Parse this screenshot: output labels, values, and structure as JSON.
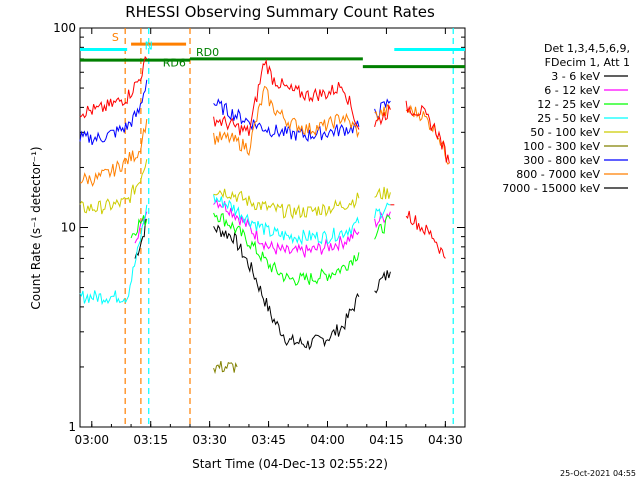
{
  "chart_data": {
    "type": "line",
    "title": "RHESSI Observing Summary Count Rates",
    "xlabel": "Start Time (04-Dec-13 02:55:22)",
    "ylabel": "Count Rate (s⁻¹ detector⁻¹)",
    "yscale": "log",
    "ylim": [
      1,
      100
    ],
    "xlim_min": [
      -3,
      95
    ],
    "x_ticks": [
      {
        "label": "03:00",
        "min": 0
      },
      {
        "label": "03:15",
        "min": 15
      },
      {
        "label": "03:30",
        "min": 30
      },
      {
        "label": "03:45",
        "min": 45
      },
      {
        "label": "04:00",
        "min": 60
      },
      {
        "label": "04:15",
        "min": 75
      },
      {
        "label": "04:30",
        "min": 90
      }
    ],
    "y_ticks": [
      {
        "label": "1",
        "value": 1
      },
      {
        "label": "10",
        "value": 10
      },
      {
        "label": "100",
        "value": 100
      }
    ],
    "legend": {
      "position": "top-right",
      "header": [
        "Det 1,3,4,5,6,9,",
        "FDecim 1, Att 1"
      ]
    },
    "gaps": [
      [
        14.5,
        31
      ],
      [
        47,
        47
      ],
      [
        68,
        70
      ],
      [
        79,
        80
      ]
    ],
    "series": [
      {
        "name": "3 - 6 keV",
        "color": "#000000",
        "points": [
          [
            11,
            7
          ],
          [
            13,
            9
          ],
          [
            14,
            11
          ],
          [
            31,
            10
          ],
          [
            36,
            9
          ],
          [
            41,
            6
          ],
          [
            46,
            3.5
          ],
          [
            50,
            2.7
          ],
          [
            55,
            2.6
          ],
          [
            60,
            2.8
          ],
          [
            64,
            3.2
          ],
          [
            68,
            4.5
          ],
          [
            72,
            5
          ],
          [
            76,
            6
          ]
        ]
      },
      {
        "name": "6 - 12 keV",
        "color": "#ff00ff",
        "points": [
          [
            11,
            9
          ],
          [
            13,
            10.5
          ],
          [
            14,
            12
          ],
          [
            31,
            14
          ],
          [
            35,
            12.5
          ],
          [
            40,
            10
          ],
          [
            45,
            8
          ],
          [
            50,
            7.5
          ],
          [
            55,
            7.6
          ],
          [
            60,
            8
          ],
          [
            64,
            8.5
          ],
          [
            68,
            9.5
          ],
          [
            72,
            10.5
          ],
          [
            76,
            12
          ]
        ]
      },
      {
        "name": "12 - 25 keV",
        "color": "#00ff00",
        "points": [
          [
            10,
            9
          ],
          [
            12,
            10.5
          ],
          [
            14,
            11
          ],
          [
            31,
            12
          ],
          [
            35,
            10.5
          ],
          [
            40,
            8.5
          ],
          [
            45,
            6.5
          ],
          [
            50,
            5.5
          ],
          [
            55,
            5.5
          ],
          [
            60,
            5.8
          ],
          [
            64,
            6.3
          ],
          [
            68,
            7.5
          ],
          [
            72,
            9
          ],
          [
            76,
            11
          ]
        ]
      },
      {
        "name": "25 - 50 keV",
        "color": "#00ffff",
        "points": [
          [
            -3,
            4.5
          ],
          [
            3,
            4.5
          ],
          [
            9,
            4.5
          ],
          [
            12,
            8
          ],
          [
            14,
            13
          ],
          [
            31,
            14
          ],
          [
            35,
            13
          ],
          [
            40,
            11
          ],
          [
            45,
            9.5
          ],
          [
            50,
            9
          ],
          [
            55,
            9
          ],
          [
            60,
            9
          ],
          [
            64,
            9.5
          ],
          [
            68,
            10.5
          ],
          [
            72,
            11.5
          ],
          [
            76,
            13
          ]
        ]
      },
      {
        "name": "50 - 100 keV",
        "color": "#cccc00",
        "points": [
          [
            -3,
            12.5
          ],
          [
            1,
            12.5
          ],
          [
            6,
            13
          ],
          [
            9,
            13.5
          ],
          [
            12,
            17
          ],
          [
            14,
            22
          ],
          [
            31,
            15.5
          ],
          [
            35,
            15
          ],
          [
            40,
            13.5
          ],
          [
            45,
            12.5
          ],
          [
            50,
            12
          ],
          [
            55,
            12
          ],
          [
            60,
            12.5
          ],
          [
            64,
            13
          ],
          [
            68,
            14
          ],
          [
            72,
            14.5
          ],
          [
            76,
            15
          ]
        ]
      },
      {
        "name": "100 - 300 keV",
        "color": "#808000",
        "points": [
          [
            31,
            2
          ],
          [
            34,
            2
          ],
          [
            37,
            2
          ]
        ]
      },
      {
        "name": "300 - 800 keV",
        "color": "#0000ff",
        "points": [
          [
            -3,
            28
          ],
          [
            2,
            28
          ],
          [
            6,
            30
          ],
          [
            9,
            32
          ],
          [
            12,
            38
          ],
          [
            14,
            55
          ],
          [
            31,
            42
          ],
          [
            35,
            38
          ],
          [
            40,
            34
          ],
          [
            45,
            31
          ],
          [
            50,
            29.5
          ],
          [
            55,
            29
          ],
          [
            60,
            30
          ],
          [
            64,
            31
          ],
          [
            68,
            32
          ],
          [
            72,
            37
          ],
          [
            76,
            43
          ]
        ]
      },
      {
        "name": "800 - 7000 keV",
        "color": "#ff7f00",
        "points": [
          [
            -3,
            17.5
          ],
          [
            1,
            17.5
          ],
          [
            5,
            19
          ],
          [
            8,
            21
          ],
          [
            12,
            24
          ],
          [
            14,
            35
          ],
          [
            31,
            28
          ],
          [
            35,
            28
          ],
          [
            40,
            25
          ],
          [
            44,
            49
          ],
          [
            46,
            40
          ],
          [
            50,
            34
          ],
          [
            55,
            31
          ],
          [
            60,
            32.5
          ],
          [
            64,
            36
          ],
          [
            68,
            30
          ],
          [
            72,
            36
          ],
          [
            76,
            39
          ],
          [
            80,
            39
          ],
          [
            84,
            37
          ],
          [
            88,
            30
          ],
          [
            91,
            21
          ]
        ]
      },
      {
        "name": "7000 - 15000 keV",
        "color": "#000000",
        "points": []
      },
      {
        "name": "",
        "color": "#ff0000",
        "points": [
          [
            -3,
            38
          ],
          [
            2,
            39
          ],
          [
            6,
            42
          ],
          [
            9,
            45
          ],
          [
            12,
            55
          ],
          [
            14,
            70
          ],
          [
            31,
            35
          ],
          [
            35,
            33
          ],
          [
            40,
            30
          ],
          [
            44,
            69
          ],
          [
            46,
            56
          ],
          [
            50,
            49
          ],
          [
            55,
            46
          ],
          [
            60,
            47
          ],
          [
            64,
            52
          ],
          [
            68,
            31
          ],
          [
            72,
            33
          ],
          [
            76,
            39
          ],
          [
            80,
            40
          ],
          [
            84,
            38
          ],
          [
            88,
            30
          ],
          [
            91,
            21
          ],
          [
            76,
            13
          ],
          [
            80,
            12
          ],
          [
            84,
            10
          ],
          [
            87,
            9
          ],
          [
            90,
            7
          ]
        ]
      }
    ],
    "level_bars": [
      {
        "label": "",
        "color": "#00ffff",
        "x0": -3,
        "x1": 9,
        "y": 78
      },
      {
        "label": "",
        "color": "#00ffff",
        "x0": 77,
        "x1": 95,
        "y": 78
      },
      {
        "label": "",
        "color": "#ff7f00",
        "x0": 10,
        "x1": 24,
        "y": 83
      },
      {
        "label": "",
        "color": "#008000",
        "x0": -3,
        "x1": 25,
        "y": 69
      },
      {
        "label": "RD0",
        "color": "#008000",
        "x0": 25,
        "x1": 69,
        "y": 70
      },
      {
        "label": "",
        "color": "#008000",
        "x0": 69,
        "x1": 95,
        "y": 64
      }
    ],
    "text_marks": [
      {
        "label": "S",
        "color": "#ff7f00",
        "x": 6,
        "y": 86
      },
      {
        "label": "N",
        "color": "#00ffff",
        "x": 14.5,
        "y": 78
      },
      {
        "label": "RD6",
        "color": "#008000",
        "x": 21,
        "y": 64
      }
    ],
    "vlines": [
      {
        "color": "#ff7f00",
        "x": 8.5
      },
      {
        "color": "#ff7f00",
        "x": 12.5
      },
      {
        "color": "#ff7f00",
        "x": 25
      },
      {
        "color": "#00ffff",
        "x": 14.5
      },
      {
        "color": "#00ffff",
        "x": 92
      }
    ]
  },
  "footer": {
    "timestamp": "25-Oct-2021 04:55"
  }
}
